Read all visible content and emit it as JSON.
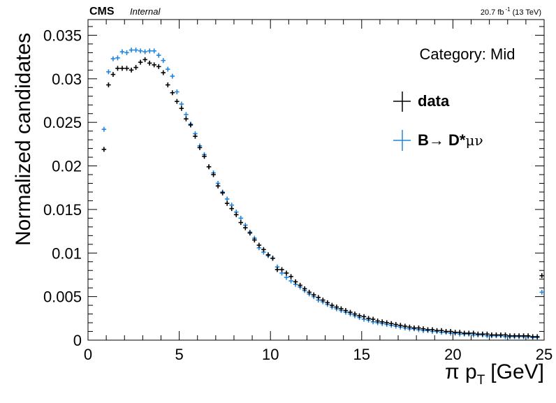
{
  "header": {
    "experiment": "CMS",
    "status": "Internal",
    "lumi_value": "20.7 fb",
    "lumi_exp": "-1",
    "energy": "(13 TeV)"
  },
  "category_label": "Category: Mid",
  "chart_data": {
    "type": "scatter",
    "xlabel_symbol": "π p",
    "xlabel_sub": "T",
    "xlabel_unit": "[GeV]",
    "ylabel": "Normalized candidates",
    "xlim": [
      0,
      25
    ],
    "ylim": [
      0,
      0.0368
    ],
    "bin_width": 0.25,
    "x_ticks": [
      "0",
      "5",
      "10",
      "15",
      "20",
      "25"
    ],
    "y_ticks": [
      "0",
      "0.005",
      "0.01",
      "0.015",
      "0.02",
      "0.025",
      "0.03",
      "0.035"
    ],
    "legend": {
      "placement": "top-right",
      "entries": [
        {
          "label": "data"
        },
        {
          "label_main": "B→ D*",
          "label_greek": "μν"
        }
      ]
    },
    "series": [
      {
        "name": "data",
        "color": "#000000",
        "x": [
          0.875,
          1.125,
          1.375,
          1.625,
          1.875,
          2.125,
          2.375,
          2.625,
          2.875,
          3.125,
          3.375,
          3.625,
          3.875,
          4.125,
          4.375,
          4.625,
          4.875,
          5.125,
          5.375,
          5.625,
          5.875,
          6.125,
          6.375,
          6.625,
          6.875,
          7.125,
          7.375,
          7.625,
          7.875,
          8.125,
          8.375,
          8.625,
          8.875,
          9.125,
          9.375,
          9.625,
          9.875,
          10.125,
          10.375,
          10.625,
          10.875,
          11.125,
          11.375,
          11.625,
          11.875,
          12.125,
          12.375,
          12.625,
          12.875,
          13.125,
          13.375,
          13.625,
          13.875,
          14.125,
          14.375,
          14.625,
          14.875,
          15.125,
          15.375,
          15.625,
          15.875,
          16.125,
          16.375,
          16.625,
          16.875,
          17.125,
          17.375,
          17.625,
          17.875,
          18.125,
          18.375,
          18.625,
          18.875,
          19.125,
          19.375,
          19.625,
          19.875,
          20.125,
          20.375,
          20.625,
          20.875,
          21.125,
          21.375,
          21.625,
          21.875,
          22.125,
          22.375,
          22.625,
          22.875,
          23.125,
          23.375,
          23.625,
          23.875,
          24.125,
          24.375,
          24.625,
          24.875
        ],
        "y": [
          0.0219,
          0.0293,
          0.0305,
          0.0312,
          0.0312,
          0.0312,
          0.031,
          0.0313,
          0.0319,
          0.0322,
          0.0318,
          0.0316,
          0.0314,
          0.0307,
          0.0293,
          0.0284,
          0.0274,
          0.0266,
          0.0254,
          0.0247,
          0.0234,
          0.0221,
          0.0211,
          0.0199,
          0.019,
          0.0177,
          0.0169,
          0.0157,
          0.0151,
          0.0144,
          0.0135,
          0.0129,
          0.0123,
          0.0115,
          0.0109,
          0.0104,
          0.0098,
          0.0094,
          0.0081,
          0.0081,
          0.0077,
          0.0073,
          0.0067,
          0.0063,
          0.0059,
          0.0055,
          0.0052,
          0.0049,
          0.0046,
          0.0043,
          0.004,
          0.0038,
          0.0036,
          0.0034,
          0.0032,
          0.003,
          0.0028,
          0.0027,
          0.0025,
          0.0024,
          0.0022,
          0.0021,
          0.002,
          0.0019,
          0.0018,
          0.0017,
          0.0016,
          0.0015,
          0.0014,
          0.0014,
          0.0013,
          0.0012,
          0.0012,
          0.0011,
          0.0011,
          0.001,
          0.001,
          0.0009,
          0.0009,
          0.0008,
          0.0008,
          0.0008,
          0.0007,
          0.0007,
          0.0007,
          0.0006,
          0.0006,
          0.0006,
          0.0006,
          0.0005,
          0.0005,
          0.0005,
          0.0005,
          0.0005,
          0.0004,
          0.0004,
          0.0074
        ]
      },
      {
        "name": "B→ D*μν",
        "color": "#1f86e0",
        "x": [
          0.875,
          1.125,
          1.375,
          1.625,
          1.875,
          2.125,
          2.375,
          2.625,
          2.875,
          3.125,
          3.375,
          3.625,
          3.875,
          4.125,
          4.375,
          4.625,
          4.875,
          5.125,
          5.375,
          5.625,
          5.875,
          6.125,
          6.375,
          6.625,
          6.875,
          7.125,
          7.375,
          7.625,
          7.875,
          8.125,
          8.375,
          8.625,
          8.875,
          9.125,
          9.375,
          9.625,
          9.875,
          10.125,
          10.375,
          10.625,
          10.875,
          11.125,
          11.375,
          11.625,
          11.875,
          12.125,
          12.375,
          12.625,
          12.875,
          13.125,
          13.375,
          13.625,
          13.875,
          14.125,
          14.375,
          14.625,
          14.875,
          15.125,
          15.375,
          15.625,
          15.875,
          16.125,
          16.375,
          16.625,
          16.875,
          17.125,
          17.375,
          17.625,
          17.875,
          18.125,
          18.375,
          18.625,
          18.875,
          19.125,
          19.375,
          19.625,
          19.875,
          20.125,
          20.375,
          20.625,
          20.875,
          21.125,
          21.375,
          21.625,
          21.875,
          22.125,
          22.375,
          22.625,
          22.875,
          23.125,
          23.375,
          23.625,
          23.875,
          24.125,
          24.375,
          24.625,
          24.875
        ],
        "y": [
          0.0242,
          0.0308,
          0.0323,
          0.0324,
          0.0331,
          0.033,
          0.0333,
          0.0333,
          0.0332,
          0.0331,
          0.0332,
          0.0332,
          0.0327,
          0.0321,
          0.0311,
          0.0303,
          0.0285,
          0.0271,
          0.0259,
          0.0248,
          0.0237,
          0.0223,
          0.0213,
          0.0199,
          0.0192,
          0.018,
          0.017,
          0.0162,
          0.0155,
          0.0147,
          0.014,
          0.0132,
          0.0124,
          0.0117,
          0.0106,
          0.0101,
          0.0097,
          0.0094,
          0.0084,
          0.0077,
          0.0072,
          0.0068,
          0.0064,
          0.0061,
          0.0057,
          0.0053,
          0.005,
          0.0046,
          0.0044,
          0.0041,
          0.0038,
          0.0036,
          0.0034,
          0.0032,
          0.003,
          0.0028,
          0.0026,
          0.0024,
          0.0023,
          0.0021,
          0.002,
          0.0019,
          0.0018,
          0.0017,
          0.0016,
          0.0015,
          0.0014,
          0.0013,
          0.0013,
          0.0012,
          0.0011,
          0.0011,
          0.001,
          0.001,
          0.0009,
          0.0009,
          0.0008,
          0.0008,
          0.0007,
          0.0007,
          0.0007,
          0.0006,
          0.0006,
          0.0006,
          0.0005,
          0.0005,
          0.0005,
          0.0005,
          0.0004,
          0.0004,
          0.0004,
          0.0004,
          0.0004,
          0.0004,
          0.0003,
          0.0003,
          0.0055
        ]
      }
    ]
  }
}
